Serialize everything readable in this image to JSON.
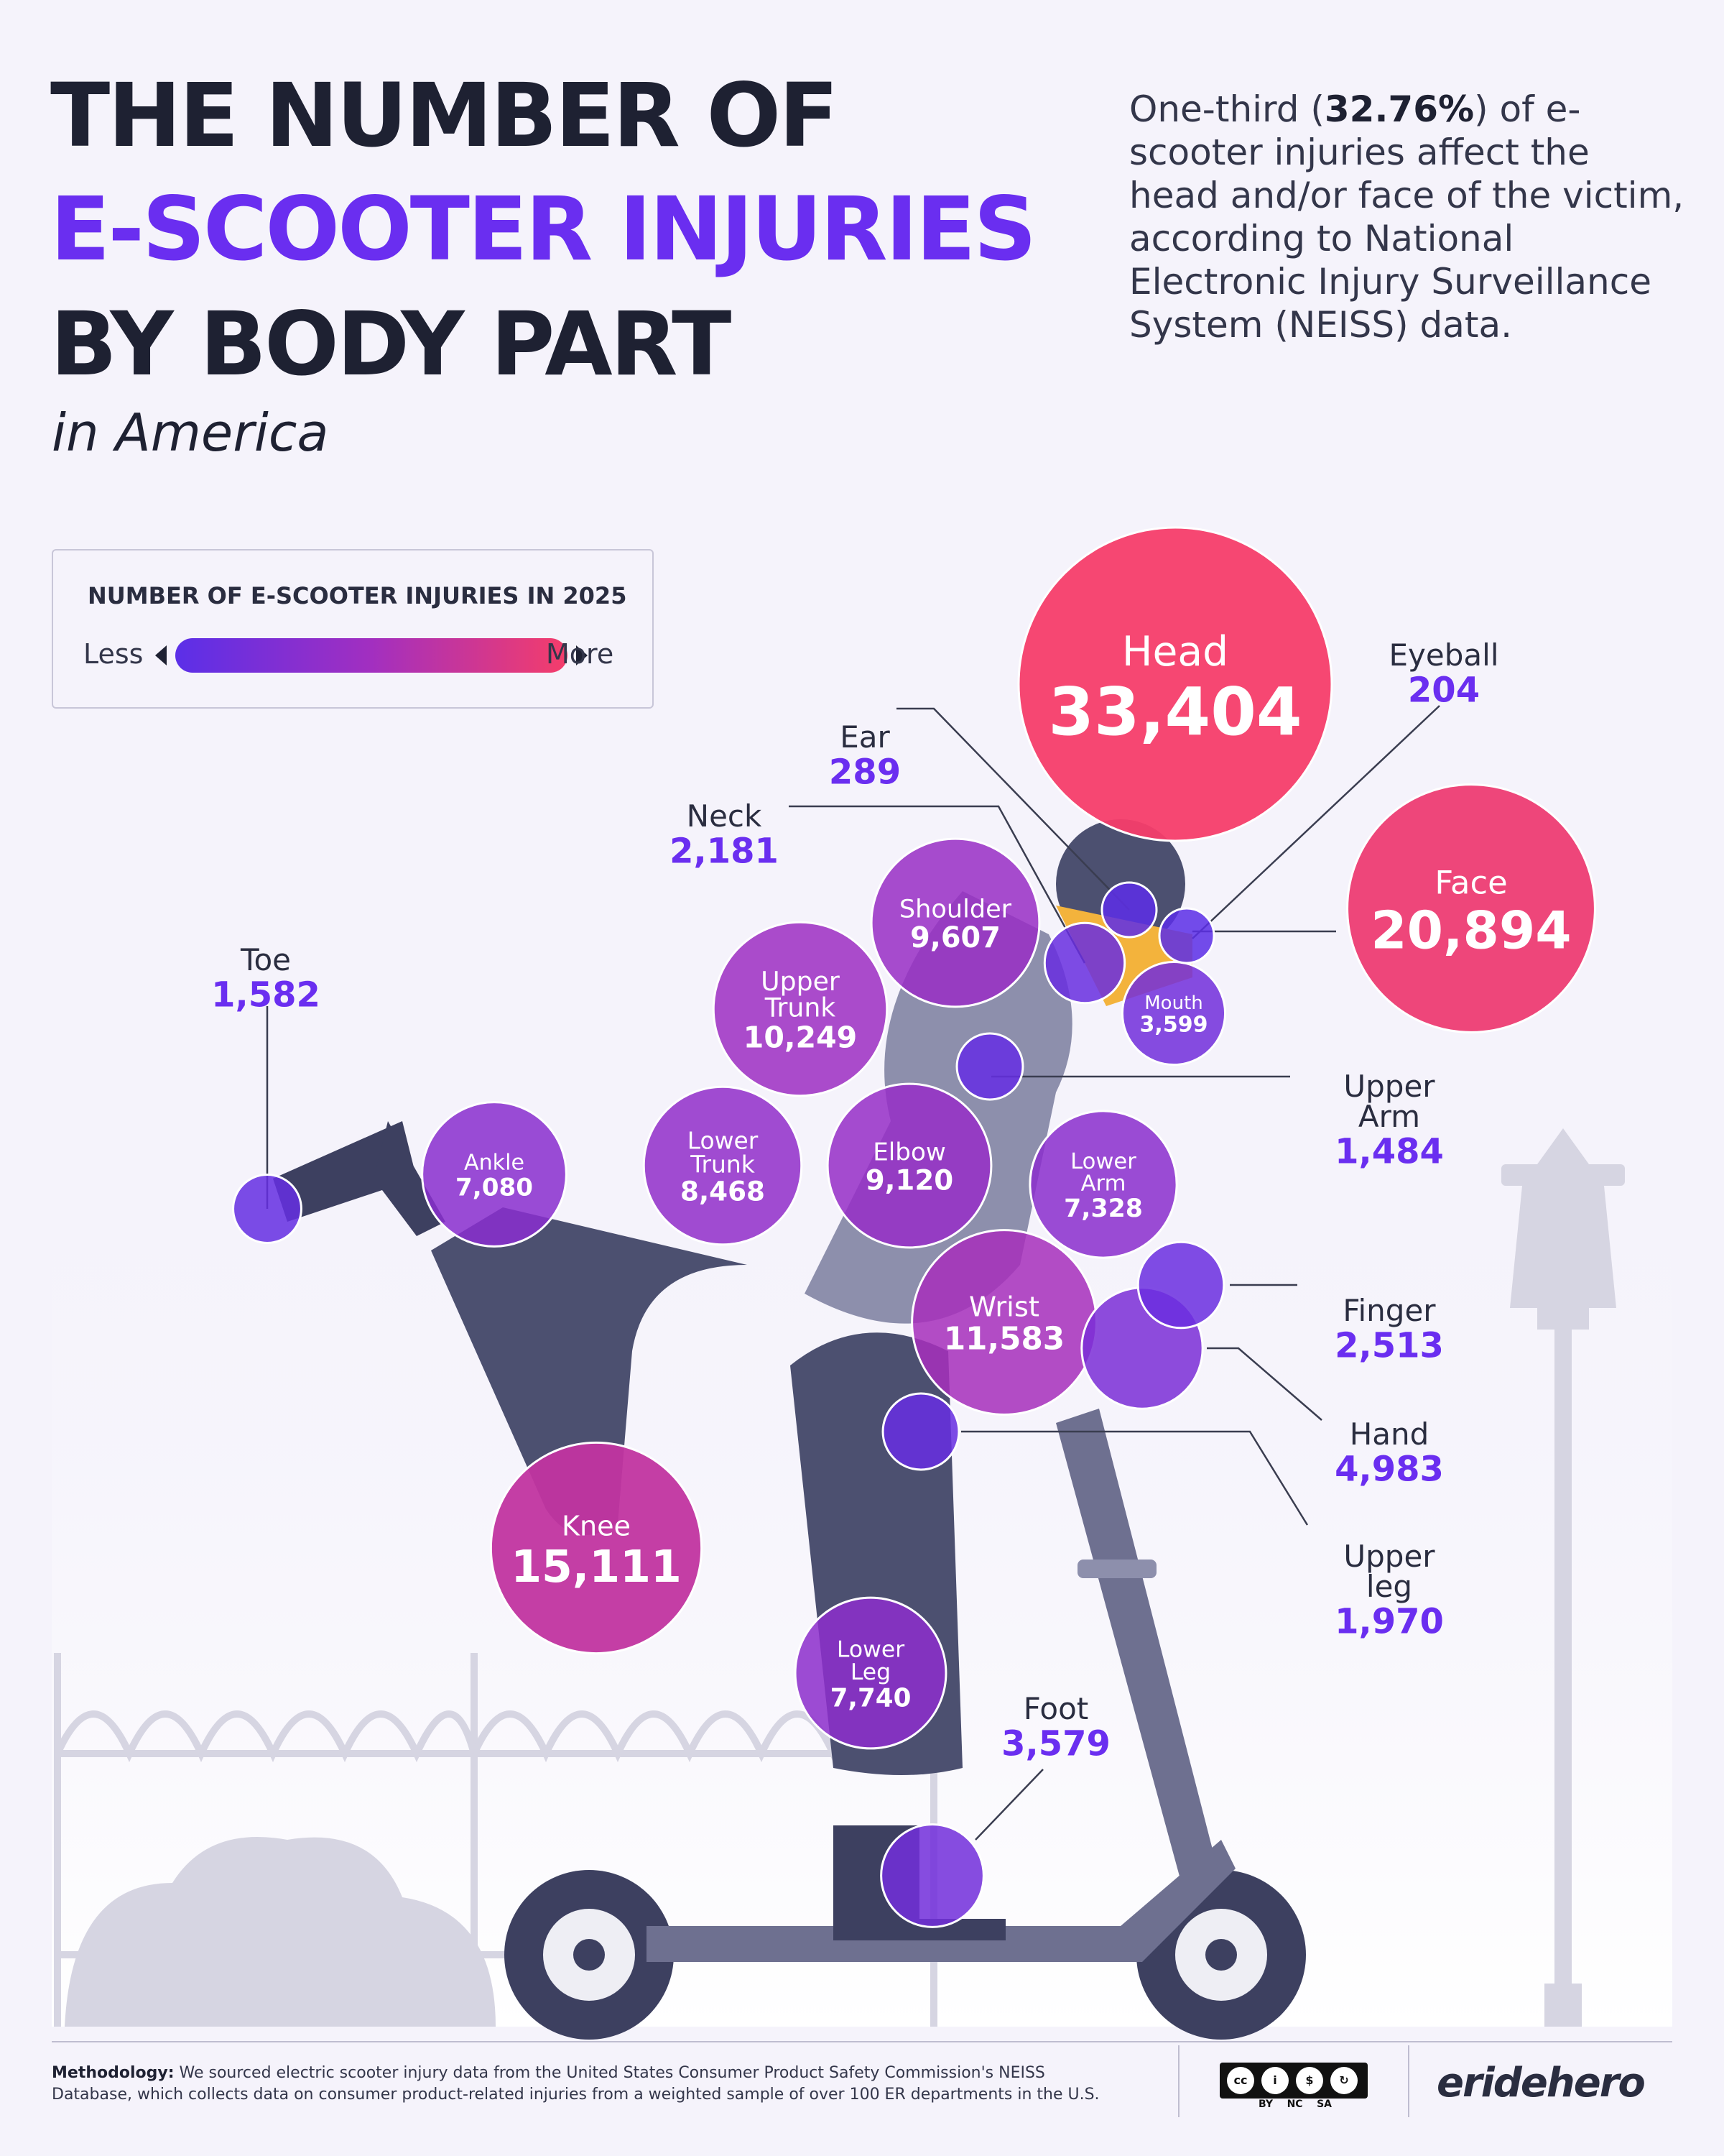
{
  "header": {
    "title_line1": "THE NUMBER OF",
    "title_line2": "E-SCOOTER INJURIES",
    "title_line3": "BY BODY PART",
    "subtitle": "in America",
    "intro_before": "One-third (",
    "intro_highlight": "32.76%",
    "intro_after": ") of e-scooter injuries affect the head and/or face of the victim, according to National Electronic Injury Surveillance System (NEISS) data."
  },
  "legend": {
    "title": "NUMBER OF E-SCOOTER INJURIES IN 2025",
    "less": "Less",
    "more": "More"
  },
  "colors": {
    "low": "#5b2fe8",
    "mid": "#a22fc0",
    "high": "#f53d6a",
    "accent": "#6a2ef0",
    "text": "#1e2132"
  },
  "chart_data": {
    "type": "bubble",
    "unit": "injuries",
    "items": [
      {
        "label": "Head",
        "value": 33404
      },
      {
        "label": "Face",
        "value": 20894
      },
      {
        "label": "Knee",
        "value": 15111
      },
      {
        "label": "Wrist",
        "value": 11583
      },
      {
        "label": "Upper Trunk",
        "value": 10249
      },
      {
        "label": "Shoulder",
        "value": 9607
      },
      {
        "label": "Elbow",
        "value": 9120
      },
      {
        "label": "Lower Trunk",
        "value": 8468
      },
      {
        "label": "Lower Leg",
        "value": 7740
      },
      {
        "label": "Lower Arm",
        "value": 7328
      },
      {
        "label": "Ankle",
        "value": 7080
      },
      {
        "label": "Hand",
        "value": 4983
      },
      {
        "label": "Mouth",
        "value": 3599
      },
      {
        "label": "Foot",
        "value": 3579
      },
      {
        "label": "Finger",
        "value": 2513
      },
      {
        "label": "Neck",
        "value": 2181
      },
      {
        "label": "Upper leg",
        "value": 1970
      },
      {
        "label": "Toe",
        "value": 1582
      },
      {
        "label": "Upper Arm",
        "value": 1484
      },
      {
        "label": "Ear",
        "value": 289
      },
      {
        "label": "Eyeball",
        "value": 204
      }
    ]
  },
  "footer": {
    "methodology_label": "Methodology:",
    "methodology_text": "We sourced electric scooter injury data from the United States Consumer Product Safety Commission's NEISS Database, which collects data on consumer product-related injuries from a weighted sample of over 100 ER departments in the U.S.",
    "license_by": "BY",
    "license_nc": "NC",
    "license_sa": "SA",
    "brand": "eridehero"
  }
}
